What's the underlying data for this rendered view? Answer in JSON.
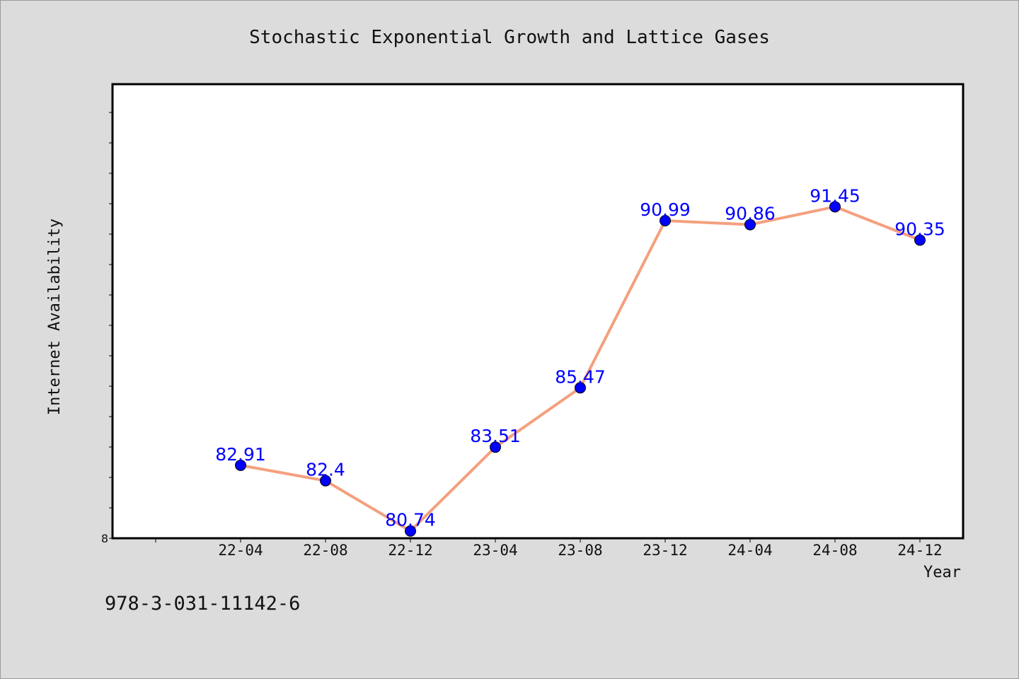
{
  "colors": {
    "background": "#dcdcdc",
    "plot_background": "#ffffff",
    "line": "#f4a07e",
    "marker": "#0000ff",
    "data_label": "#0000ff"
  },
  "footnote": "978-3-031-11142-6",
  "chart_data": {
    "type": "line",
    "title": "Stochastic Exponential Growth and Lattice Gases",
    "xlabel": "Year",
    "ylabel": "Internet Availability",
    "categories": [
      "22-04",
      "22-08",
      "22-12",
      "23-04",
      "23-08",
      "23-12",
      "24-04",
      "24-08",
      "24-12"
    ],
    "series": [
      {
        "values": [
          82.91,
          82.4,
          80.74,
          83.51,
          85.47,
          90.99,
          90.86,
          91.45,
          90.35
        ],
        "labels": [
          "82.91",
          "82.4",
          "80.74",
          "83.51",
          "85.47",
          "90.99",
          "90.86",
          "91.45",
          "90.35"
        ]
      }
    ],
    "y_tick_labels": [
      "8"
    ],
    "ylim": [
      80.5,
      95.5
    ],
    "grid": false,
    "legend": "none"
  }
}
